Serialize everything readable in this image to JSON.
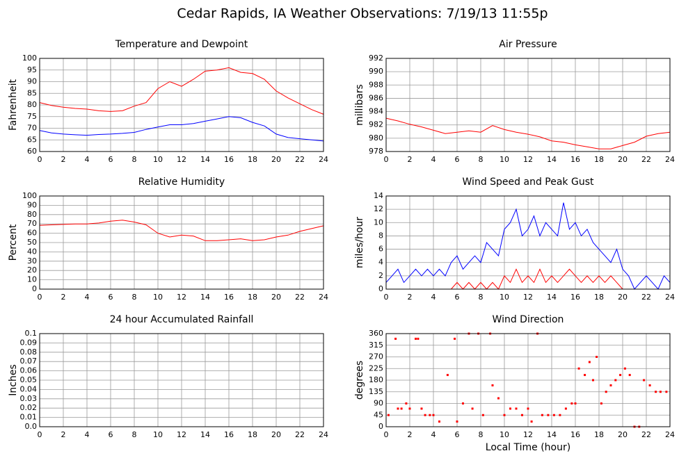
{
  "title": "Cedar Rapids, IA Weather Observations: 7/19/13 11:55p",
  "chart_data": [
    {
      "type": "line",
      "title": "Temperature and Dewpoint",
      "ylabel": "Fahrenheit",
      "x": [
        0,
        1,
        2,
        3,
        4,
        5,
        6,
        7,
        8,
        9,
        10,
        11,
        12,
        13,
        14,
        15,
        16,
        17,
        18,
        19,
        20,
        21,
        22,
        23,
        24
      ],
      "series": [
        {
          "name": "Temperature",
          "color": "#ff0000",
          "values": [
            81,
            79.8,
            79,
            78.5,
            78.2,
            77.5,
            77.2,
            77.5,
            79.5,
            81,
            87,
            90,
            88,
            91,
            94.5,
            95,
            96,
            94,
            93.5,
            91,
            86,
            83,
            80.5,
            78,
            76
          ]
        },
        {
          "name": "Dewpoint",
          "color": "#0000ff",
          "values": [
            69,
            68,
            67.5,
            67.2,
            67,
            67.3,
            67.5,
            67.8,
            68.2,
            69.5,
            70.5,
            71.5,
            71.5,
            72,
            73,
            74,
            75,
            74.5,
            72.5,
            71,
            67.5,
            66,
            65.5,
            65,
            64.5
          ]
        }
      ],
      "xlim": [
        0,
        24
      ],
      "xticks": [
        0,
        2,
        4,
        6,
        8,
        10,
        12,
        14,
        16,
        18,
        20,
        22,
        24
      ],
      "ylim": [
        60,
        100
      ],
      "yticks": [
        60,
        65,
        70,
        75,
        80,
        85,
        90,
        95,
        100
      ],
      "grid": true
    },
    {
      "type": "line",
      "title": "Air Pressure",
      "ylabel": "millibars",
      "x": [
        0,
        1,
        2,
        3,
        4,
        5,
        6,
        7,
        8,
        9,
        10,
        11,
        12,
        13,
        14,
        15,
        16,
        17,
        18,
        19,
        20,
        21,
        22,
        23,
        24
      ],
      "series": [
        {
          "name": "Pressure",
          "color": "#ff0000",
          "values": [
            983,
            982.6,
            982.1,
            981.7,
            981.2,
            980.7,
            980.9,
            981.1,
            980.9,
            981.9,
            981.3,
            980.9,
            980.6,
            980.2,
            979.6,
            979.4,
            979,
            978.7,
            978.4,
            978.4,
            978.9,
            979.4,
            980.3,
            980.7,
            980.9
          ]
        }
      ],
      "xlim": [
        0,
        24
      ],
      "xticks": [
        0,
        2,
        4,
        6,
        8,
        10,
        12,
        14,
        16,
        18,
        20,
        22,
        24
      ],
      "ylim": [
        978,
        992
      ],
      "yticks": [
        978,
        980,
        982,
        984,
        986,
        988,
        990,
        992
      ],
      "grid": true
    },
    {
      "type": "line",
      "title": "Relative Humidity",
      "ylabel": "Percent",
      "x": [
        0,
        1,
        2,
        3,
        4,
        5,
        6,
        7,
        8,
        9,
        10,
        11,
        12,
        13,
        14,
        15,
        16,
        17,
        18,
        19,
        20,
        21,
        22,
        23,
        24
      ],
      "series": [
        {
          "name": "Humidity",
          "color": "#ff0000",
          "values": [
            68.5,
            69,
            69.5,
            70,
            70,
            71,
            73,
            74,
            72,
            69,
            60,
            56,
            58,
            57,
            52,
            52,
            53,
            54,
            52,
            53,
            56,
            58,
            62,
            65,
            68
          ]
        }
      ],
      "xlim": [
        0,
        24
      ],
      "xticks": [
        0,
        2,
        4,
        6,
        8,
        10,
        12,
        14,
        16,
        18,
        20,
        22,
        24
      ],
      "ylim": [
        0,
        100
      ],
      "yticks": [
        0,
        10,
        20,
        30,
        40,
        50,
        60,
        70,
        80,
        90,
        100
      ],
      "grid": true
    },
    {
      "type": "line",
      "title": "Wind Speed and Peak Gust",
      "ylabel": "miles/hour",
      "x": [
        0,
        0.5,
        1,
        1.5,
        2,
        2.5,
        3,
        3.5,
        4,
        4.5,
        5,
        5.5,
        6,
        6.5,
        7,
        7.5,
        8,
        8.5,
        9,
        9.5,
        10,
        10.5,
        11,
        11.5,
        12,
        12.5,
        13,
        13.5,
        14,
        14.5,
        15,
        15.5,
        16,
        16.5,
        17,
        17.5,
        18,
        18.5,
        19,
        19.5,
        20,
        20.5,
        21,
        21.5,
        22,
        22.5,
        23,
        23.5,
        24
      ],
      "series": [
        {
          "name": "Wind Speed",
          "color": "#0000ff",
          "values": [
            1,
            2,
            3,
            1,
            2,
            3,
            2,
            3,
            2,
            3,
            2,
            4,
            5,
            3,
            4,
            5,
            4,
            7,
            6,
            5,
            9,
            10,
            12,
            8,
            9,
            11,
            8,
            10,
            9,
            8,
            13,
            9,
            10,
            8,
            9,
            7,
            6,
            5,
            4,
            6,
            3,
            2,
            0,
            1,
            2,
            1,
            0,
            2,
            1
          ]
        },
        {
          "name": "Peak Gust",
          "color": "#ff0000",
          "values": [
            0,
            0,
            0,
            0,
            0,
            0,
            0,
            0,
            0,
            0,
            0,
            0,
            1,
            0,
            1,
            0,
            1,
            0,
            1,
            0,
            2,
            1,
            3,
            1,
            2,
            1,
            3,
            1,
            2,
            1,
            2,
            3,
            2,
            1,
            2,
            1,
            2,
            1,
            2,
            1,
            0,
            0,
            0,
            0,
            0,
            0,
            0,
            0,
            0
          ]
        }
      ],
      "xlim": [
        0,
        24
      ],
      "xticks": [
        0,
        2,
        4,
        6,
        8,
        10,
        12,
        14,
        16,
        18,
        20,
        22,
        24
      ],
      "ylim": [
        0,
        14
      ],
      "yticks": [
        0,
        2,
        4,
        6,
        8,
        10,
        12,
        14
      ],
      "grid": true
    },
    {
      "type": "line",
      "title": "24 hour Accumulated Rainfall",
      "ylabel": "Inches",
      "x": [
        0,
        24
      ],
      "series": [
        {
          "name": "Rainfall",
          "color": "#ff3366",
          "values": [
            0,
            0
          ]
        }
      ],
      "xlim": [
        0,
        24
      ],
      "xticks": [
        0,
        2,
        4,
        6,
        8,
        10,
        12,
        14,
        16,
        18,
        20,
        22,
        24
      ],
      "ylim": [
        0,
        0.1
      ],
      "yticks": [
        {
          "value": 0,
          "label": "0.0"
        },
        0.01,
        0.02,
        0.03,
        0.04,
        0.05,
        0.06,
        0.07,
        0.08,
        0.09,
        0.1
      ],
      "grid": true
    },
    {
      "type": "scatter",
      "title": "Wind Direction",
      "ylabel": "degrees",
      "xlabel": "Local Time (hour)",
      "color": "#ff0000",
      "x": [
        0.2,
        0.8,
        1,
        1.3,
        1.7,
        2,
        2.5,
        2.7,
        3,
        3.3,
        3.7,
        4,
        4.5,
        5.2,
        5.8,
        6,
        6.5,
        7,
        7.3,
        7.8,
        8.2,
        8.8,
        9,
        9.5,
        10,
        10.5,
        11,
        11.5,
        12,
        12.3,
        12.8,
        13.2,
        13.7,
        14.2,
        14.7,
        15.2,
        15.7,
        16,
        16.3,
        16.8,
        17.2,
        17.5,
        17.8,
        18.2,
        18.6,
        19,
        19.4,
        19.8,
        20.2,
        20.6,
        21,
        21.4,
        21.8,
        22.3,
        22.8,
        23.2,
        23.7
      ],
      "values": [
        45,
        340,
        70,
        70,
        90,
        70,
        340,
        340,
        70,
        45,
        45,
        45,
        20,
        200,
        340,
        20,
        90,
        360,
        70,
        360,
        45,
        360,
        160,
        110,
        45,
        70,
        70,
        45,
        70,
        20,
        360,
        45,
        45,
        45,
        45,
        70,
        90,
        90,
        225,
        200,
        250,
        180,
        270,
        90,
        135,
        160,
        180,
        200,
        225,
        200,
        0,
        0,
        180,
        160,
        135,
        135,
        135
      ],
      "xlim": [
        0,
        24
      ],
      "xticks": [
        0,
        2,
        4,
        6,
        8,
        10,
        12,
        14,
        16,
        18,
        20,
        22,
        24
      ],
      "ylim": [
        0,
        360
      ],
      "yticks": [
        0,
        45,
        90,
        135,
        180,
        225,
        270,
        315,
        360
      ],
      "grid": true
    }
  ]
}
